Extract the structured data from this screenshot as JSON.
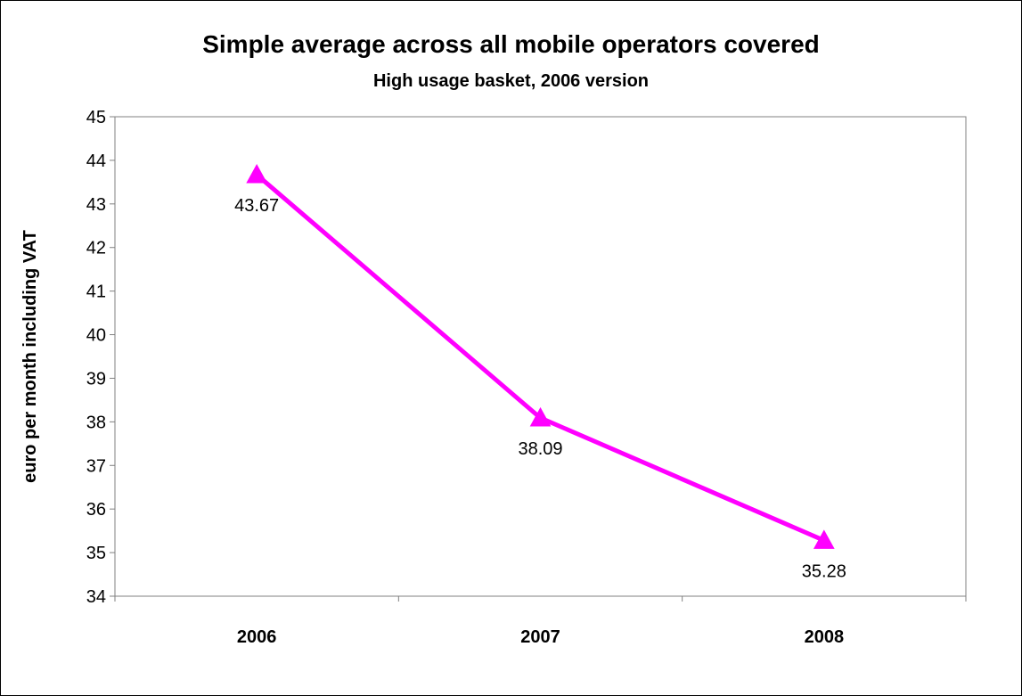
{
  "chart_data": {
    "type": "line",
    "title": "Simple average across all mobile operators covered",
    "subtitle": "High usage basket, 2006 version",
    "xlabel": "",
    "ylabel": "euro per month including VAT",
    "categories": [
      "2006",
      "2007",
      "2008"
    ],
    "series": [
      {
        "values": [
          43.67,
          38.09,
          35.28
        ],
        "data_labels": [
          "43.67",
          "38.09",
          "35.28"
        ],
        "color": "#ff00ff",
        "marker": "triangle"
      }
    ],
    "ylim": [
      34,
      45
    ],
    "yticks": [
      "34",
      "35",
      "36",
      "37",
      "38",
      "39",
      "40",
      "41",
      "42",
      "43",
      "44",
      "45"
    ],
    "grid": true,
    "plot_background": "#ffffff"
  }
}
